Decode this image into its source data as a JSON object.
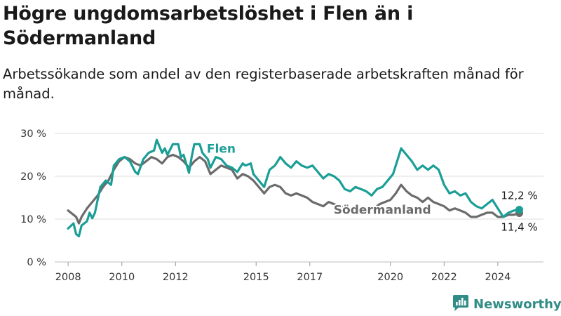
{
  "title": "Högre ungdomsarbetslöshet i Flen än i Södermanland",
  "subtitle": "Arbetssökande som andel av den registerbaserade arbetskraften månad för månad.",
  "brand": {
    "name": "Newsworthy",
    "icon": "newsworthy-logo-icon",
    "color": "#2f8c86"
  },
  "chart_data": {
    "type": "line",
    "title": "Högre ungdomsarbetslöshet i Flen än i Södermanland",
    "subtitle": "Arbetssökande som andel av den registerbaserade arbetskraften månad för månad.",
    "xlabel": "",
    "ylabel": "",
    "x_ticks": [
      2008,
      2010,
      2012,
      2015,
      2017,
      2020,
      2022,
      2024
    ],
    "x_tick_labels": [
      "2008",
      "2010",
      "2012",
      "2015",
      "2017",
      "2020",
      "2022",
      "2024"
    ],
    "y_ticks": [
      0,
      10,
      20,
      30
    ],
    "y_tick_labels": [
      "0 %",
      "10 %",
      "20 %",
      "30 %"
    ],
    "ylim": [
      0,
      30
    ],
    "grid": "horizontal",
    "series": [
      {
        "name": "Flen",
        "color": "#1a9e96",
        "end_label": "12,2 %",
        "points": [
          [
            2008.0,
            7.8
          ],
          [
            2008.2,
            9.0
          ],
          [
            2008.3,
            6.5
          ],
          [
            2008.4,
            6.0
          ],
          [
            2008.5,
            8.5
          ],
          [
            2008.7,
            9.5
          ],
          [
            2008.8,
            11.5
          ],
          [
            2008.9,
            10.2
          ],
          [
            2009.0,
            11.5
          ],
          [
            2009.2,
            17.5
          ],
          [
            2009.4,
            19.0
          ],
          [
            2009.6,
            18.0
          ],
          [
            2009.7,
            22.5
          ],
          [
            2009.9,
            24.0
          ],
          [
            2010.1,
            24.5
          ],
          [
            2010.3,
            23.5
          ],
          [
            2010.5,
            21.0
          ],
          [
            2010.6,
            20.5
          ],
          [
            2010.8,
            24.0
          ],
          [
            2011.0,
            25.5
          ],
          [
            2011.2,
            26.0
          ],
          [
            2011.3,
            28.5
          ],
          [
            2011.5,
            25.5
          ],
          [
            2011.6,
            26.5
          ],
          [
            2011.7,
            25.0
          ],
          [
            2011.9,
            27.5
          ],
          [
            2012.1,
            27.5
          ],
          [
            2012.2,
            24.5
          ],
          [
            2012.3,
            25.0
          ],
          [
            2012.5,
            20.8
          ],
          [
            2012.6,
            24.5
          ],
          [
            2012.7,
            27.5
          ],
          [
            2012.9,
            27.5
          ],
          [
            2013.0,
            25.5
          ],
          [
            2013.2,
            24.0
          ],
          [
            2013.3,
            22.0
          ],
          [
            2013.5,
            24.5
          ],
          [
            2013.7,
            24.0
          ],
          [
            2013.9,
            22.5
          ],
          [
            2014.1,
            22.0
          ],
          [
            2014.3,
            21.0
          ],
          [
            2014.5,
            23.0
          ],
          [
            2014.6,
            22.5
          ],
          [
            2014.8,
            23.0
          ],
          [
            2014.9,
            20.5
          ],
          [
            2015.1,
            19.0
          ],
          [
            2015.3,
            17.5
          ],
          [
            2015.5,
            21.5
          ],
          [
            2015.7,
            22.5
          ],
          [
            2015.9,
            24.5
          ],
          [
            2016.1,
            23.0
          ],
          [
            2016.3,
            22.0
          ],
          [
            2016.5,
            23.5
          ],
          [
            2016.7,
            22.5
          ],
          [
            2016.9,
            22.0
          ],
          [
            2017.1,
            22.5
          ],
          [
            2017.3,
            21.0
          ],
          [
            2017.5,
            19.5
          ],
          [
            2017.7,
            20.5
          ],
          [
            2017.9,
            20.0
          ],
          [
            2018.1,
            19.0
          ],
          [
            2018.3,
            17.0
          ],
          [
            2018.5,
            16.5
          ],
          [
            2018.7,
            17.5
          ],
          [
            2018.9,
            17.0
          ],
          [
            2019.1,
            16.5
          ],
          [
            2019.3,
            15.5
          ],
          [
            2019.5,
            17.0
          ],
          [
            2019.7,
            17.5
          ],
          [
            2019.9,
            19.0
          ],
          [
            2020.1,
            20.5
          ],
          [
            2020.3,
            24.5
          ],
          [
            2020.4,
            26.5
          ],
          [
            2020.6,
            25.0
          ],
          [
            2020.8,
            23.5
          ],
          [
            2021.0,
            21.5
          ],
          [
            2021.2,
            22.5
          ],
          [
            2021.4,
            21.5
          ],
          [
            2021.6,
            22.5
          ],
          [
            2021.8,
            21.5
          ],
          [
            2022.0,
            18.0
          ],
          [
            2022.2,
            16.0
          ],
          [
            2022.4,
            16.5
          ],
          [
            2022.6,
            15.5
          ],
          [
            2022.8,
            16.0
          ],
          [
            2023.0,
            14.0
          ],
          [
            2023.2,
            13.0
          ],
          [
            2023.4,
            12.5
          ],
          [
            2023.6,
            13.5
          ],
          [
            2023.8,
            14.5
          ],
          [
            2024.0,
            12.5
          ],
          [
            2024.2,
            10.5
          ],
          [
            2024.4,
            11.5
          ],
          [
            2024.6,
            12.0
          ],
          [
            2024.8,
            12.2
          ]
        ]
      },
      {
        "name": "Södermanland",
        "color": "#6b6b6b",
        "end_label": "11,4 %",
        "points": [
          [
            2008.0,
            12.0
          ],
          [
            2008.2,
            11.0
          ],
          [
            2008.3,
            10.5
          ],
          [
            2008.4,
            9.0
          ],
          [
            2008.5,
            10.5
          ],
          [
            2008.7,
            12.5
          ],
          [
            2008.9,
            14.0
          ],
          [
            2009.1,
            15.5
          ],
          [
            2009.3,
            17.5
          ],
          [
            2009.5,
            19.0
          ],
          [
            2009.7,
            21.5
          ],
          [
            2009.9,
            23.5
          ],
          [
            2010.1,
            24.5
          ],
          [
            2010.3,
            24.0
          ],
          [
            2010.5,
            23.0
          ],
          [
            2010.7,
            22.5
          ],
          [
            2010.9,
            23.5
          ],
          [
            2011.1,
            24.5
          ],
          [
            2011.3,
            24.0
          ],
          [
            2011.5,
            23.0
          ],
          [
            2011.7,
            24.5
          ],
          [
            2011.9,
            25.0
          ],
          [
            2012.1,
            24.5
          ],
          [
            2012.3,
            23.5
          ],
          [
            2012.5,
            22.0
          ],
          [
            2012.7,
            23.5
          ],
          [
            2012.9,
            24.5
          ],
          [
            2013.1,
            23.5
          ],
          [
            2013.3,
            20.5
          ],
          [
            2013.5,
            21.5
          ],
          [
            2013.7,
            22.5
          ],
          [
            2013.9,
            22.0
          ],
          [
            2014.1,
            21.5
          ],
          [
            2014.3,
            19.5
          ],
          [
            2014.5,
            20.5
          ],
          [
            2014.7,
            20.0
          ],
          [
            2014.9,
            19.0
          ],
          [
            2015.1,
            17.5
          ],
          [
            2015.3,
            16.0
          ],
          [
            2015.5,
            17.5
          ],
          [
            2015.7,
            18.0
          ],
          [
            2015.9,
            17.5
          ],
          [
            2016.1,
            16.0
          ],
          [
            2016.3,
            15.5
          ],
          [
            2016.5,
            16.0
          ],
          [
            2016.7,
            15.5
          ],
          [
            2016.9,
            15.0
          ],
          [
            2017.1,
            14.0
          ],
          [
            2017.3,
            13.5
          ],
          [
            2017.5,
            13.0
          ],
          [
            2017.7,
            14.0
          ],
          [
            2017.9,
            13.5
          ],
          [
            2018.1,
            13.0
          ],
          [
            2018.3,
            12.5
          ],
          [
            2019.4,
            12.5
          ],
          [
            2019.6,
            13.5
          ],
          [
            2019.8,
            14.0
          ],
          [
            2020.0,
            14.5
          ],
          [
            2020.2,
            16.0
          ],
          [
            2020.4,
            18.0
          ],
          [
            2020.6,
            16.5
          ],
          [
            2020.8,
            15.5
          ],
          [
            2021.0,
            15.0
          ],
          [
            2021.2,
            14.0
          ],
          [
            2021.4,
            15.0
          ],
          [
            2021.6,
            14.0
          ],
          [
            2021.8,
            13.5
          ],
          [
            2022.0,
            13.0
          ],
          [
            2022.2,
            12.0
          ],
          [
            2022.4,
            12.5
          ],
          [
            2022.6,
            12.0
          ],
          [
            2022.8,
            11.5
          ],
          [
            2023.0,
            10.5
          ],
          [
            2023.2,
            10.5
          ],
          [
            2023.4,
            11.0
          ],
          [
            2023.6,
            11.5
          ],
          [
            2023.8,
            11.5
          ],
          [
            2024.0,
            10.5
          ],
          [
            2024.2,
            10.5
          ],
          [
            2024.4,
            11.0
          ],
          [
            2024.6,
            11.0
          ],
          [
            2024.8,
            11.4
          ]
        ]
      }
    ]
  }
}
